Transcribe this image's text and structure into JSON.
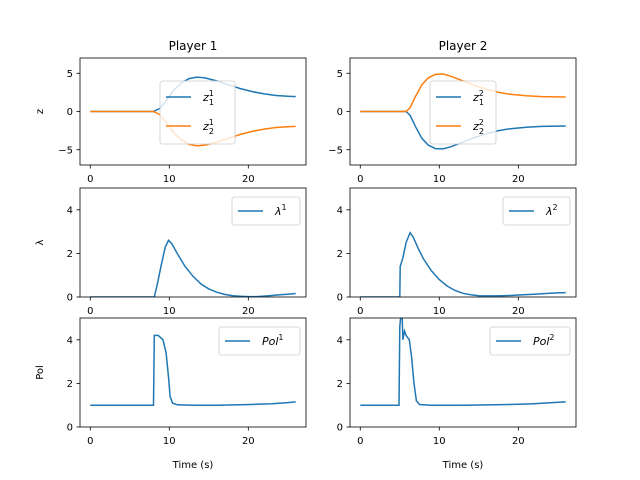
{
  "colors": {
    "c0": "#1f77b4",
    "c1": "#ff7f0e"
  },
  "titles": [
    "Player 1",
    "Player 2"
  ],
  "ylabels": [
    "z",
    "λ",
    "Pol"
  ],
  "xlabel": "Time (s)",
  "legend_placement": {
    "z": "center",
    "lambda": "upper right",
    "pol": "upper right"
  },
  "chart_data": [
    {
      "id": "z1",
      "type": "line",
      "title": "Player 1",
      "ylabel": "z",
      "xlim": [
        -1.3,
        27.3
      ],
      "ylim": [
        -7,
        7
      ],
      "xticks": [
        0,
        10,
        20
      ],
      "yticks": [
        -5,
        0,
        5
      ],
      "series": [
        {
          "name": "z_1^1",
          "color": "c0",
          "points": [
            [
              0,
              0
            ],
            [
              8,
              0
            ],
            [
              8.8,
              0.4
            ],
            [
              9.6,
              1.4
            ],
            [
              10.5,
              2.7
            ],
            [
              11.5,
              3.7
            ],
            [
              12.5,
              4.3
            ],
            [
              13.5,
              4.5
            ],
            [
              14.5,
              4.4
            ],
            [
              16,
              4.0
            ],
            [
              17.5,
              3.5
            ],
            [
              19,
              3.0
            ],
            [
              20.5,
              2.6
            ],
            [
              22,
              2.3
            ],
            [
              23.5,
              2.1
            ],
            [
              25,
              2.0
            ],
            [
              26,
              1.95
            ]
          ]
        },
        {
          "name": "z_2^1",
          "color": "c1",
          "points": [
            [
              0,
              0
            ],
            [
              8,
              0
            ],
            [
              8.8,
              -0.4
            ],
            [
              9.6,
              -1.4
            ],
            [
              10.5,
              -2.7
            ],
            [
              11.5,
              -3.7
            ],
            [
              12.5,
              -4.3
            ],
            [
              13.5,
              -4.5
            ],
            [
              14.5,
              -4.4
            ],
            [
              16,
              -4.0
            ],
            [
              17.5,
              -3.5
            ],
            [
              19,
              -3.0
            ],
            [
              20.5,
              -2.6
            ],
            [
              22,
              -2.3
            ],
            [
              23.5,
              -2.1
            ],
            [
              25,
              -2.0
            ],
            [
              26,
              -1.95
            ]
          ]
        }
      ]
    },
    {
      "id": "z2",
      "type": "line",
      "title": "Player 2",
      "ylabel": "",
      "xlim": [
        -1.3,
        27.3
      ],
      "ylim": [
        -7,
        7
      ],
      "xticks": [
        0,
        10,
        20
      ],
      "yticks": [
        -5,
        0,
        5
      ],
      "series": [
        {
          "name": "z_1^2",
          "color": "c0",
          "points": [
            [
              0,
              0
            ],
            [
              5.8,
              0
            ],
            [
              6.3,
              -0.5
            ],
            [
              7,
              -2.0
            ],
            [
              7.8,
              -3.5
            ],
            [
              8.6,
              -4.4
            ],
            [
              9.5,
              -4.85
            ],
            [
              10.5,
              -4.9
            ],
            [
              11.5,
              -4.6
            ],
            [
              13,
              -4.0
            ],
            [
              14.5,
              -3.4
            ],
            [
              16,
              -2.9
            ],
            [
              17.5,
              -2.5
            ],
            [
              19,
              -2.25
            ],
            [
              21,
              -2.05
            ],
            [
              23,
              -1.95
            ],
            [
              26,
              -1.9
            ]
          ]
        },
        {
          "name": "z_2^2",
          "color": "c1",
          "points": [
            [
              0,
              0
            ],
            [
              5.8,
              0
            ],
            [
              6.3,
              0.5
            ],
            [
              7,
              2.0
            ],
            [
              7.8,
              3.5
            ],
            [
              8.6,
              4.4
            ],
            [
              9.5,
              4.85
            ],
            [
              10.5,
              4.9
            ],
            [
              11.5,
              4.6
            ],
            [
              13,
              4.0
            ],
            [
              14.5,
              3.4
            ],
            [
              16,
              2.9
            ],
            [
              17.5,
              2.5
            ],
            [
              19,
              2.25
            ],
            [
              21,
              2.05
            ],
            [
              23,
              1.95
            ],
            [
              26,
              1.9
            ]
          ]
        }
      ]
    },
    {
      "id": "l1",
      "type": "line",
      "ylabel": "λ",
      "xlim": [
        -1.3,
        27.3
      ],
      "ylim": [
        0,
        5
      ],
      "xticks": [
        0,
        10,
        20
      ],
      "yticks": [
        0,
        2,
        4
      ],
      "series": [
        {
          "name": "λ^1",
          "color": "c0",
          "points": [
            [
              0,
              0
            ],
            [
              8.1,
              0
            ],
            [
              8.5,
              0.6
            ],
            [
              9,
              1.5
            ],
            [
              9.5,
              2.3
            ],
            [
              9.9,
              2.6
            ],
            [
              10.3,
              2.45
            ],
            [
              11,
              2.0
            ],
            [
              12,
              1.4
            ],
            [
              13,
              0.95
            ],
            [
              14,
              0.6
            ],
            [
              15,
              0.37
            ],
            [
              16,
              0.22
            ],
            [
              17,
              0.12
            ],
            [
              18,
              0.06
            ],
            [
              19,
              0.03
            ],
            [
              20,
              0.02
            ],
            [
              21,
              0.02
            ],
            [
              22,
              0.04
            ],
            [
              23,
              0.07
            ],
            [
              24,
              0.1
            ],
            [
              25,
              0.13
            ],
            [
              26,
              0.16
            ]
          ]
        }
      ]
    },
    {
      "id": "l2",
      "type": "line",
      "ylabel": "",
      "xlim": [
        -1.3,
        27.3
      ],
      "ylim": [
        0,
        5
      ],
      "xticks": [
        0,
        10,
        20
      ],
      "yticks": [
        0,
        2,
        4
      ],
      "series": [
        {
          "name": "λ^2",
          "color": "c0",
          "points": [
            [
              0,
              0
            ],
            [
              5,
              0
            ],
            [
              5.05,
              1.4
            ],
            [
              5.4,
              1.8
            ],
            [
              5.8,
              2.5
            ],
            [
              6.3,
              2.95
            ],
            [
              6.7,
              2.75
            ],
            [
              7.3,
              2.25
            ],
            [
              8,
              1.75
            ],
            [
              9,
              1.2
            ],
            [
              10,
              0.8
            ],
            [
              11,
              0.5
            ],
            [
              12,
              0.3
            ],
            [
              13,
              0.17
            ],
            [
              14,
              0.1
            ],
            [
              15,
              0.06
            ],
            [
              16,
              0.05
            ],
            [
              17,
              0.05
            ],
            [
              18,
              0.06
            ],
            [
              19,
              0.07
            ],
            [
              20,
              0.09
            ],
            [
              21,
              0.11
            ],
            [
              22,
              0.13
            ],
            [
              23,
              0.15
            ],
            [
              24,
              0.17
            ],
            [
              25,
              0.19
            ],
            [
              26,
              0.2
            ]
          ]
        }
      ]
    },
    {
      "id": "p1",
      "type": "line",
      "ylabel": "Pol",
      "xlabel": "Time (s)",
      "xlim": [
        -1.3,
        27.3
      ],
      "ylim": [
        0,
        5
      ],
      "xticks": [
        0,
        10,
        20
      ],
      "yticks": [
        0,
        2,
        4
      ],
      "series": [
        {
          "name": "Pol^1",
          "color": "c0",
          "points": [
            [
              0,
              1.0
            ],
            [
              8,
              1.0
            ],
            [
              8.1,
              4.2
            ],
            [
              8.6,
              4.2
            ],
            [
              9.2,
              4.0
            ],
            [
              9.6,
              3.4
            ],
            [
              9.9,
              2.3
            ],
            [
              10.1,
              1.4
            ],
            [
              10.4,
              1.1
            ],
            [
              11,
              1.02
            ],
            [
              13,
              1.0
            ],
            [
              16,
              1.0
            ],
            [
              19,
              1.02
            ],
            [
              21,
              1.04
            ],
            [
              23,
              1.07
            ],
            [
              25,
              1.12
            ],
            [
              26,
              1.15
            ]
          ]
        }
      ]
    },
    {
      "id": "p2",
      "type": "line",
      "ylabel": "",
      "xlabel": "Time (s)",
      "xlim": [
        -1.3,
        27.3
      ],
      "ylim": [
        0,
        5
      ],
      "xticks": [
        0,
        10,
        20
      ],
      "yticks": [
        0,
        2,
        4
      ],
      "series": [
        {
          "name": "Pol^2",
          "color": "c0",
          "points": [
            [
              0,
              1.0
            ],
            [
              4.9,
              1.0
            ],
            [
              5.0,
              4.6
            ],
            [
              5.1,
              5.0
            ],
            [
              5.3,
              5.0
            ],
            [
              5.4,
              4.0
            ],
            [
              5.6,
              4.4
            ],
            [
              5.8,
              4.2
            ],
            [
              6.2,
              4.0
            ],
            [
              6.5,
              3.2
            ],
            [
              6.8,
              2.0
            ],
            [
              7.1,
              1.2
            ],
            [
              7.5,
              1.03
            ],
            [
              9,
              1.0
            ],
            [
              13,
              1.0
            ],
            [
              17,
              1.02
            ],
            [
              20,
              1.04
            ],
            [
              22,
              1.07
            ],
            [
              24,
              1.11
            ],
            [
              26,
              1.15
            ]
          ]
        }
      ]
    }
  ]
}
